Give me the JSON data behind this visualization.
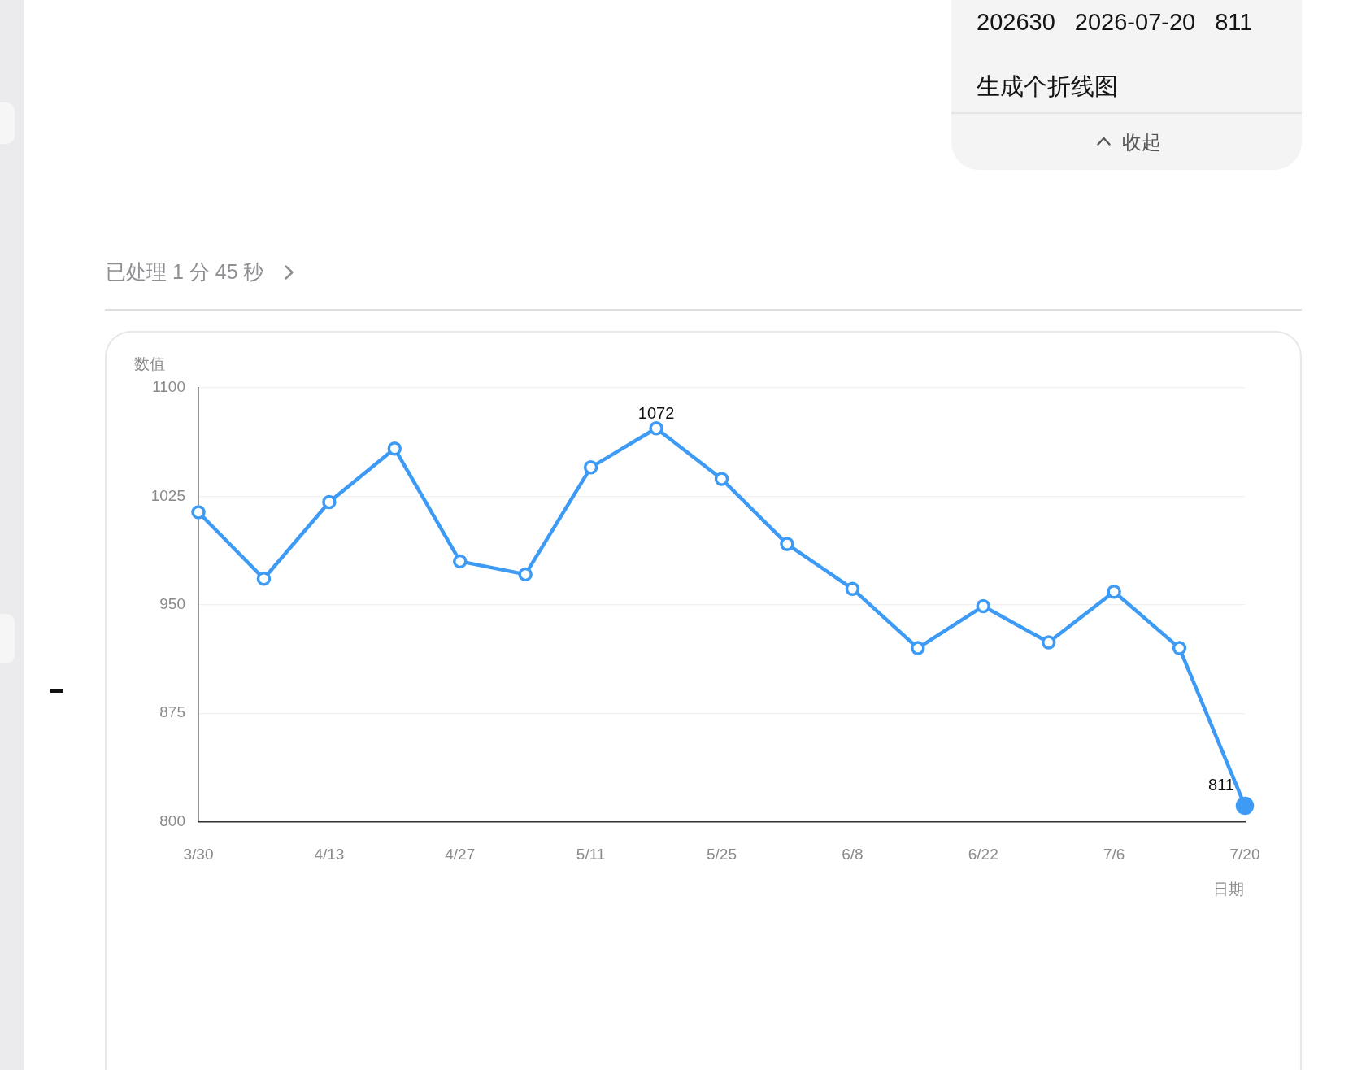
{
  "chart_data": {
    "type": "line",
    "categories": [
      "3/30",
      null,
      "4/13",
      null,
      "4/27",
      null,
      "5/11",
      null,
      "5/25",
      null,
      "6/8",
      null,
      "6/22",
      null,
      "7/6",
      null,
      "7/20"
    ],
    "values": [
      1014,
      968,
      1021,
      1058,
      980,
      971,
      1045,
      1072,
      1037,
      992,
      961,
      920,
      949,
      924,
      959,
      920,
      811
    ],
    "color": "#3d9bf5",
    "value_labels": [
      null,
      null,
      null,
      null,
      null,
      null,
      null,
      "1072",
      null,
      null,
      null,
      null,
      null,
      null,
      null,
      null,
      "811"
    ],
    "ylim": [
      800,
      1100
    ],
    "yticks": [
      800,
      875,
      950,
      1025,
      1100
    ],
    "xlabel": "日期",
    "ylabel": "数值",
    "grid": "y",
    "marker": "circle",
    "annotations": [
      "202630 2026-07-20 811",
      "生成个折线图",
      "收起",
      "已处理 1 分 45 秒"
    ]
  }
}
